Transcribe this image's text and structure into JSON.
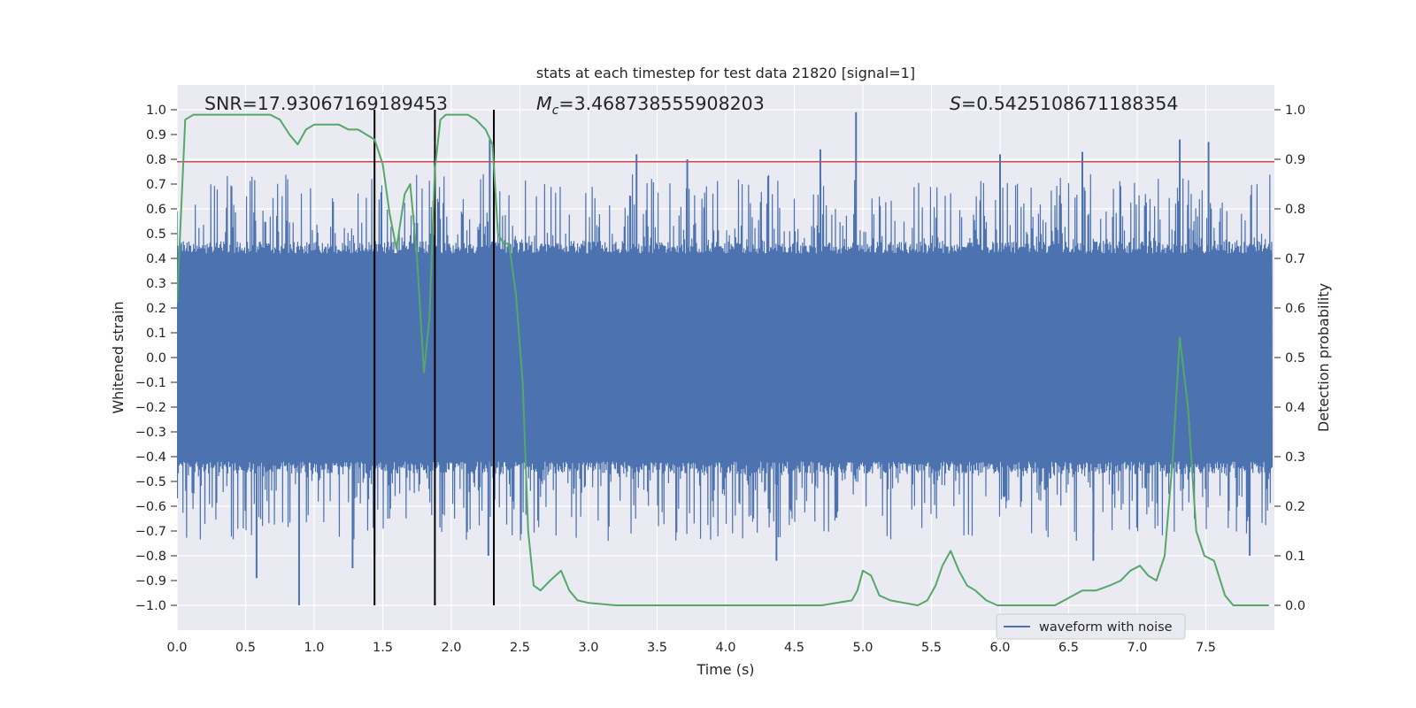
{
  "chart_data": {
    "type": "line",
    "title": "stats at each timestep for test data 21820 [signal=1]",
    "xlabel": "Time (s)",
    "ylabel": "Whitened strain",
    "y2label": "Detection probability",
    "xlim": [
      0.0,
      8.0
    ],
    "ylim": [
      -1.1,
      1.1
    ],
    "y2lim": [
      -0.05,
      1.05
    ],
    "grid": true,
    "legend_position": "lower right",
    "xticks": [
      "0.0",
      "0.5",
      "1.0",
      "1.5",
      "2.0",
      "2.5",
      "3.0",
      "3.5",
      "4.0",
      "4.5",
      "5.0",
      "5.5",
      "6.0",
      "6.5",
      "7.0",
      "7.5"
    ],
    "yticks": [
      "1.0",
      "0.9",
      "0.8",
      "0.7",
      "0.6",
      "0.5",
      "0.4",
      "0.3",
      "0.2",
      "0.1",
      "0.0",
      "−0.1",
      "−0.2",
      "−0.3",
      "−0.4",
      "−0.5",
      "−0.6",
      "−0.7",
      "−0.8",
      "−0.9",
      "−1.0"
    ],
    "y2ticks": [
      "1.0",
      "0.9",
      "0.8",
      "0.7",
      "0.6",
      "0.5",
      "0.4",
      "0.3",
      "0.2",
      "0.1",
      "0.0"
    ],
    "annotations": {
      "snr": "SNR=17.93067169189453",
      "mc_symbol": "M",
      "mc_sub": "c",
      "mc_value": "=3.468738555908203",
      "s_symbol": "S",
      "s_value": "=0.5425108671188354"
    },
    "threshold": {
      "value": 0.79,
      "axis": "left",
      "color": "#c44e52"
    },
    "vertical_lines": [
      1.44,
      1.88,
      2.31
    ],
    "series": [
      {
        "name": "waveform with noise",
        "axis": "left",
        "color": "#4c72b0",
        "kind": "noise",
        "samples": 2400,
        "core_amplitude": 0.42,
        "peaks": [
          {
            "x": 4.95,
            "y": 0.99
          },
          {
            "x": 2.28,
            "y": 0.88
          },
          {
            "x": 7.31,
            "y": 0.88
          },
          {
            "x": 7.52,
            "y": 0.87
          },
          {
            "x": 4.69,
            "y": 0.84
          },
          {
            "x": 6.0,
            "y": 0.82
          },
          {
            "x": 3.35,
            "y": 0.82
          },
          {
            "x": 3.72,
            "y": 0.8
          },
          {
            "x": 6.6,
            "y": 0.83
          },
          {
            "x": 0.89,
            "y": -1.0
          },
          {
            "x": 1.28,
            "y": -0.85
          },
          {
            "x": 1.44,
            "y": -0.8
          },
          {
            "x": 2.27,
            "y": -0.8
          },
          {
            "x": 0.58,
            "y": -0.89
          },
          {
            "x": 4.37,
            "y": -0.82
          },
          {
            "x": 6.68,
            "y": -0.82
          },
          {
            "x": 7.82,
            "y": -0.8
          }
        ]
      },
      {
        "name": "Detection probability",
        "axis": "right",
        "color": "#55a868",
        "x": [
          0.0,
          0.06,
          0.12,
          0.2,
          0.3,
          0.4,
          0.5,
          0.6,
          0.68,
          0.75,
          0.82,
          0.88,
          0.94,
          1.0,
          1.1,
          1.18,
          1.25,
          1.32,
          1.38,
          1.44,
          1.5,
          1.55,
          1.6,
          1.66,
          1.7,
          1.75,
          1.8,
          1.84,
          1.88,
          1.92,
          1.96,
          2.0,
          2.05,
          2.12,
          2.18,
          2.25,
          2.3,
          2.34,
          2.38,
          2.42,
          2.47,
          2.52,
          2.56,
          2.6,
          2.65,
          2.72,
          2.8,
          2.86,
          2.92,
          3.0,
          3.2,
          3.5,
          3.8,
          4.1,
          4.4,
          4.7,
          4.92,
          4.96,
          5.0,
          5.06,
          5.12,
          5.2,
          5.3,
          5.4,
          5.47,
          5.53,
          5.58,
          5.64,
          5.7,
          5.76,
          5.82,
          5.9,
          5.98,
          6.05,
          6.2,
          6.4,
          6.6,
          6.7,
          6.8,
          6.88,
          6.95,
          7.02,
          7.08,
          7.14,
          7.2,
          7.26,
          7.31,
          7.37,
          7.43,
          7.49,
          7.56,
          7.64,
          7.7,
          7.76,
          7.82,
          7.9,
          7.96
        ],
        "y": [
          0.61,
          0.98,
          0.99,
          0.99,
          0.99,
          0.99,
          0.99,
          0.99,
          0.99,
          0.98,
          0.95,
          0.93,
          0.96,
          0.97,
          0.97,
          0.97,
          0.96,
          0.96,
          0.95,
          0.94,
          0.89,
          0.79,
          0.72,
          0.83,
          0.85,
          0.7,
          0.47,
          0.58,
          0.88,
          0.98,
          0.99,
          0.99,
          0.99,
          0.99,
          0.98,
          0.96,
          0.93,
          0.75,
          0.73,
          0.73,
          0.63,
          0.45,
          0.15,
          0.04,
          0.03,
          0.05,
          0.07,
          0.03,
          0.01,
          0.005,
          0.0,
          0.0,
          0.0,
          0.0,
          0.0,
          0.0,
          0.01,
          0.03,
          0.07,
          0.06,
          0.02,
          0.01,
          0.005,
          0.0,
          0.01,
          0.04,
          0.08,
          0.11,
          0.07,
          0.04,
          0.03,
          0.01,
          0.0,
          0.0,
          0.0,
          0.0,
          0.03,
          0.03,
          0.04,
          0.05,
          0.07,
          0.08,
          0.06,
          0.05,
          0.1,
          0.3,
          0.54,
          0.4,
          0.15,
          0.1,
          0.09,
          0.02,
          0.0,
          0.0,
          0.0,
          0.0,
          0.0
        ]
      }
    ]
  }
}
